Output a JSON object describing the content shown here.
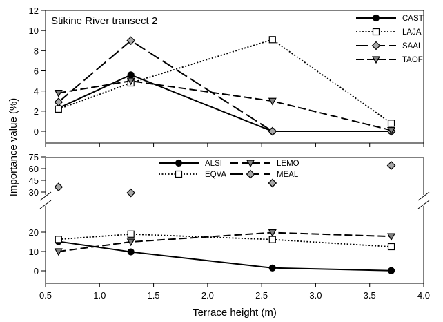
{
  "chart_data": [
    {
      "type": "line",
      "title": "Stikine River transect 2",
      "xlim": [
        0.5,
        4.0
      ],
      "ylim": [
        -1,
        12
      ],
      "yticks": [
        "0",
        "2",
        "4",
        "6",
        "8",
        "10",
        "12"
      ],
      "legend_position": "top-right",
      "series": [
        {
          "name": "CAST",
          "marker": "circle-filled",
          "dash": "solid",
          "x": [
            0.62,
            1.29,
            2.6,
            3.7
          ],
          "y": [
            2.3,
            5.6,
            0.0,
            0.0
          ]
        },
        {
          "name": "LAJA",
          "marker": "square-open",
          "dash": "dotted",
          "x": [
            0.62,
            1.29,
            2.6,
            3.7
          ],
          "y": [
            2.2,
            4.8,
            9.1,
            0.8
          ]
        },
        {
          "name": "SAAL",
          "marker": "diamond-gray",
          "dash": "long-dash",
          "x": [
            0.62,
            1.29,
            2.6,
            3.7
          ],
          "y": [
            2.9,
            9.0,
            0.0,
            0.0
          ]
        },
        {
          "name": "TAOF",
          "marker": "triangle-down-gray",
          "dash": "dash",
          "x": [
            0.62,
            1.29,
            2.6,
            3.7
          ],
          "y": [
            3.8,
            5.0,
            3.0,
            0.1
          ]
        }
      ]
    },
    {
      "type": "line",
      "xlabel": "Terrace height (m)",
      "xlim": [
        0.5,
        4.0
      ],
      "xticks": [
        "0.5",
        "1.0",
        "1.5",
        "2.0",
        "2.5",
        "3.0",
        "3.5",
        "4.0"
      ],
      "axis_break": "between 20 and 30",
      "yticks_lower": [
        "0",
        "10",
        "20"
      ],
      "yticks_upper": [
        "30",
        "45",
        "60",
        "75"
      ],
      "legend_position": "top-center",
      "series": [
        {
          "name": "ALSI",
          "marker": "circle-filled",
          "dash": "solid",
          "x": [
            0.62,
            1.29,
            2.6,
            3.7
          ],
          "y": [
            15.2,
            9.8,
            1.5,
            0.1
          ]
        },
        {
          "name": "EQVA",
          "marker": "square-open",
          "dash": "dotted",
          "x": [
            0.62,
            1.29,
            2.6,
            3.7
          ],
          "y": [
            16.3,
            19.0,
            16.2,
            12.5
          ]
        },
        {
          "name": "LEMO",
          "marker": "triangle-down-gray",
          "dash": "dash",
          "x": [
            0.62,
            1.29,
            2.6,
            3.7
          ],
          "y": [
            10.0,
            15.0,
            19.8,
            17.8
          ]
        },
        {
          "name": "MEAL",
          "marker": "diamond-gray",
          "dash": "long-dash",
          "x": [
            0.62,
            1.29,
            2.6,
            3.7
          ],
          "y": [
            36.5,
            29.0,
            41.5,
            64.0
          ]
        }
      ]
    }
  ],
  "ylabel": "Importance value (%)"
}
